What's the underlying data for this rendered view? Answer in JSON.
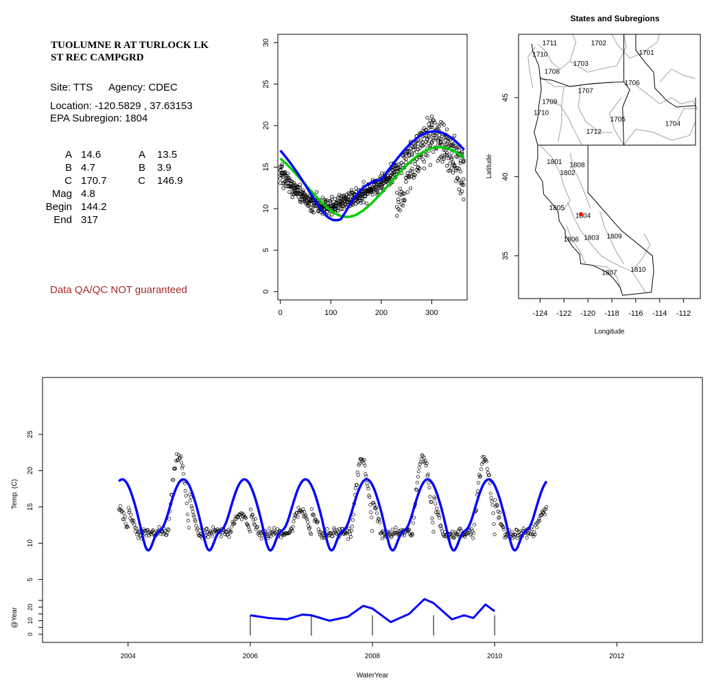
{
  "info": {
    "site_name_line1": "TUOLUMNE R AT TURLOCK LK",
    "site_name_line2": "ST REC CAMPGRD",
    "site": "Site: TTS",
    "agency": "Agency: CDEC",
    "location": "Location: -120.5829 , 37.63153",
    "epa": "EPA Subregion: 1804",
    "params_left": [
      {
        "label": "A",
        "value": "14.6"
      },
      {
        "label": "B",
        "value": "4.7"
      },
      {
        "label": "C",
        "value": "170.7"
      },
      {
        "label": "Mag",
        "value": "4.8"
      },
      {
        "label": "Begin",
        "value": "144.2"
      },
      {
        "label": "End",
        "value": "317"
      }
    ],
    "params_right": [
      {
        "label": "A",
        "value": "13.5"
      },
      {
        "label": "B",
        "value": "3.9"
      },
      {
        "label": "C",
        "value": "146.9"
      }
    ],
    "qa_note": "Data QA/QC NOT guaranteed",
    "qa_color": "#a52a2a"
  },
  "chart_data": [
    {
      "type": "scatter",
      "title": "",
      "xlabel": "",
      "ylabel": "",
      "xlim": [
        -5,
        370
      ],
      "ylim": [
        -1,
        31
      ],
      "x_ticks": [
        0,
        100,
        200,
        300
      ],
      "y_ticks": [
        0,
        5,
        10,
        15,
        20,
        25,
        30
      ],
      "grid": false,
      "marker": "open-circle",
      "points_color": "#000000",
      "fit_color_primary": "#0000ff",
      "fit_color_secondary": "#00cc00",
      "points_summary": [
        {
          "day": 0,
          "temp": 14.5
        },
        {
          "day": 30,
          "temp": 12.2
        },
        {
          "day": 60,
          "temp": 10.6
        },
        {
          "day": 90,
          "temp": 10.2
        },
        {
          "day": 120,
          "temp": 10.6
        },
        {
          "day": 150,
          "temp": 11.3
        },
        {
          "day": 180,
          "temp": 12.2
        },
        {
          "day": 210,
          "temp": 13.5
        },
        {
          "day": 240,
          "temp": 15.2
        },
        {
          "day": 270,
          "temp": 18.5
        },
        {
          "day": 300,
          "temp": 20.5
        },
        {
          "day": 330,
          "temp": 19.0
        },
        {
          "day": 360,
          "temp": 16.5
        }
      ]
    },
    {
      "type": "map",
      "title": "States and Subregions",
      "xlabel": "Longitude",
      "ylabel": "Latitude",
      "xlim": [
        -125.8,
        -110.6
      ],
      "ylim": [
        32.3,
        49.0
      ],
      "x_ticks": [
        -124,
        -122,
        -120,
        -118,
        -116,
        -114,
        -112
      ],
      "y_ticks": [
        35,
        40,
        45
      ],
      "site_marker": {
        "lon": -120.5829,
        "lat": 37.63153,
        "color": "#ff0000"
      },
      "region_labels": [
        {
          "text": "1711",
          "lon": -123.2,
          "lat": 48.3
        },
        {
          "text": "1702",
          "lon": -119.1,
          "lat": 48.3
        },
        {
          "text": "1701",
          "lon": -115.1,
          "lat": 47.7
        },
        {
          "text": "1710",
          "lon": -124.0,
          "lat": 47.6
        },
        {
          "text": "1703",
          "lon": -120.6,
          "lat": 47.0
        },
        {
          "text": "1708",
          "lon": -123.0,
          "lat": 46.5
        },
        {
          "text": "1706",
          "lon": -116.3,
          "lat": 45.8
        },
        {
          "text": "1707",
          "lon": -120.2,
          "lat": 45.3
        },
        {
          "text": "1709",
          "lon": -123.2,
          "lat": 44.6
        },
        {
          "text": "1710",
          "lon": -123.9,
          "lat": 43.9
        },
        {
          "text": "1705",
          "lon": -117.5,
          "lat": 43.5
        },
        {
          "text": "1704",
          "lon": -112.9,
          "lat": 43.2
        },
        {
          "text": "1712",
          "lon": -119.5,
          "lat": 42.7
        },
        {
          "text": "1801",
          "lon": -122.8,
          "lat": 40.8
        },
        {
          "text": "1808",
          "lon": -120.9,
          "lat": 40.6
        },
        {
          "text": "1802",
          "lon": -121.7,
          "lat": 40.1
        },
        {
          "text": "1805",
          "lon": -122.6,
          "lat": 37.9
        },
        {
          "text": "1804",
          "lon": -120.4,
          "lat": 37.4
        },
        {
          "text": "1806",
          "lon": -121.4,
          "lat": 35.9
        },
        {
          "text": "1803",
          "lon": -119.7,
          "lat": 36.0
        },
        {
          "text": "1809",
          "lon": -117.8,
          "lat": 36.1
        },
        {
          "text": "1807",
          "lon": -118.2,
          "lat": 33.8
        },
        {
          "text": "1810",
          "lon": -115.8,
          "lat": 34.0
        }
      ]
    },
    {
      "type": "line",
      "title": "",
      "xlabel": "WaterYear",
      "ylabel": "Temp. (C)",
      "ylabel2": "@Year",
      "xlim": [
        2002.6,
        2013.4
      ],
      "ylim": [
        4,
        30
      ],
      "ylim2": [
        -3,
        30
      ],
      "x_ticks": [
        2004,
        2006,
        2008,
        2010,
        2012
      ],
      "y_ticks": [
        5,
        10,
        15,
        20,
        25
      ],
      "y2_ticks": [
        0,
        10,
        20
      ],
      "y2_ticks_minor": [
        5,
        15,
        25
      ],
      "line_color": "#0000ff",
      "points_color": "#000000",
      "fitted_range": [
        2003.85,
        2010.85
      ],
      "fit_params": {
        "mean": 14.6,
        "amplitude": 4.7,
        "peak_day": 300
      },
      "annual_curve": [
        {
          "x": 2006.0,
          "y": 14
        },
        {
          "x": 2006.3,
          "y": 12
        },
        {
          "x": 2006.6,
          "y": 11
        },
        {
          "x": 2006.85,
          "y": 14.5
        },
        {
          "x": 2007.0,
          "y": 14
        },
        {
          "x": 2007.3,
          "y": 10
        },
        {
          "x": 2007.6,
          "y": 13
        },
        {
          "x": 2007.85,
          "y": 21
        },
        {
          "x": 2008.0,
          "y": 19
        },
        {
          "x": 2008.3,
          "y": 9
        },
        {
          "x": 2008.6,
          "y": 15
        },
        {
          "x": 2008.85,
          "y": 26
        },
        {
          "x": 2009.0,
          "y": 23
        },
        {
          "x": 2009.3,
          "y": 11
        },
        {
          "x": 2009.5,
          "y": 14
        },
        {
          "x": 2009.65,
          "y": 12
        },
        {
          "x": 2009.85,
          "y": 22
        },
        {
          "x": 2010.0,
          "y": 17
        }
      ],
      "year_bars": [
        2006,
        2007,
        2008,
        2009,
        2010
      ],
      "points_summary": [
        {
          "x": 2003.85,
          "y": 17.5
        },
        {
          "x": 2004.3,
          "y": 10.0
        },
        {
          "x": 2004.8,
          "y": 22.0
        },
        {
          "x": 2005.2,
          "y": 10.0
        },
        {
          "x": 2005.8,
          "y": 13.5
        },
        {
          "x": 2006.3,
          "y": 10.0
        },
        {
          "x": 2006.9,
          "y": 14.5
        },
        {
          "x": 2007.3,
          "y": 9.5
        },
        {
          "x": 2007.8,
          "y": 21.0
        },
        {
          "x": 2008.3,
          "y": 9.0
        },
        {
          "x": 2008.8,
          "y": 21.5
        },
        {
          "x": 2009.3,
          "y": 9.5
        },
        {
          "x": 2009.8,
          "y": 21.0
        },
        {
          "x": 2010.3,
          "y": 10.0
        },
        {
          "x": 2010.8,
          "y": 14.0
        }
      ]
    }
  ]
}
